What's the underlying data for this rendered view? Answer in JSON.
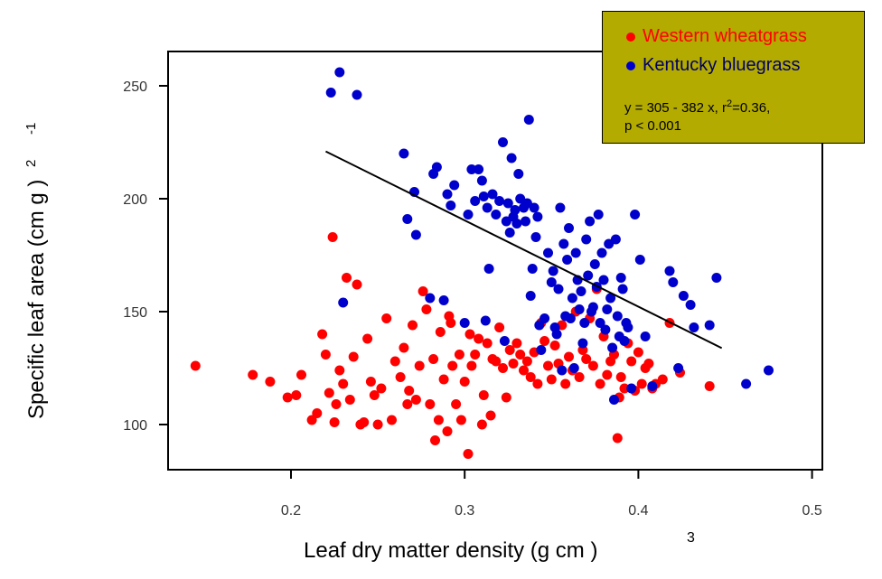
{
  "chart_data": {
    "type": "scatter",
    "xlabel": "Leaf dry matter density (g cm  )",
    "xlabel_sup": "3",
    "ylabel": "Specific leaf area (cm g )",
    "ylabel_sup1": "2",
    "ylabel_sup2": "-1",
    "xlim": [
      0.13,
      0.505
    ],
    "ylim": [
      80,
      265
    ],
    "xticks": [
      0.2,
      0.3,
      0.4,
      0.5
    ],
    "xtick_labels": [
      "0.2",
      "0.3",
      "0.4",
      "0.5"
    ],
    "yticks": [
      100,
      150,
      200,
      250
    ],
    "ytick_labels": [
      "100",
      "150",
      "200",
      "250"
    ],
    "grid": false,
    "legend_position": "top-right",
    "series": [
      {
        "name": "Western wheatgrass",
        "color": "#ff0000",
        "points": [
          [
            0.145,
            126
          ],
          [
            0.178,
            122
          ],
          [
            0.188,
            119
          ],
          [
            0.198,
            112
          ],
          [
            0.203,
            113
          ],
          [
            0.206,
            122
          ],
          [
            0.212,
            102
          ],
          [
            0.215,
            105
          ],
          [
            0.218,
            140
          ],
          [
            0.22,
            131
          ],
          [
            0.222,
            114
          ],
          [
            0.224,
            183
          ],
          [
            0.225,
            101
          ],
          [
            0.226,
            109
          ],
          [
            0.228,
            124
          ],
          [
            0.23,
            118
          ],
          [
            0.232,
            165
          ],
          [
            0.234,
            111
          ],
          [
            0.236,
            130
          ],
          [
            0.238,
            162
          ],
          [
            0.24,
            100
          ],
          [
            0.242,
            101
          ],
          [
            0.244,
            138
          ],
          [
            0.246,
            119
          ],
          [
            0.248,
            113
          ],
          [
            0.25,
            100
          ],
          [
            0.252,
            116
          ],
          [
            0.255,
            147
          ],
          [
            0.258,
            102
          ],
          [
            0.26,
            128
          ],
          [
            0.263,
            121
          ],
          [
            0.265,
            134
          ],
          [
            0.267,
            109
          ],
          [
            0.268,
            115
          ],
          [
            0.27,
            144
          ],
          [
            0.272,
            111
          ],
          [
            0.274,
            126
          ],
          [
            0.276,
            159
          ],
          [
            0.278,
            151
          ],
          [
            0.28,
            109
          ],
          [
            0.282,
            129
          ],
          [
            0.283,
            93
          ],
          [
            0.285,
            102
          ],
          [
            0.286,
            141
          ],
          [
            0.288,
            120
          ],
          [
            0.29,
            97
          ],
          [
            0.291,
            148
          ],
          [
            0.292,
            145
          ],
          [
            0.293,
            126
          ],
          [
            0.295,
            109
          ],
          [
            0.297,
            131
          ],
          [
            0.298,
            102
          ],
          [
            0.3,
            119
          ],
          [
            0.302,
            87
          ],
          [
            0.303,
            140
          ],
          [
            0.304,
            126
          ],
          [
            0.306,
            131
          ],
          [
            0.308,
            138
          ],
          [
            0.31,
            100
          ],
          [
            0.311,
            113
          ],
          [
            0.313,
            136
          ],
          [
            0.315,
            104
          ],
          [
            0.316,
            129
          ],
          [
            0.318,
            128
          ],
          [
            0.32,
            143
          ],
          [
            0.322,
            125
          ],
          [
            0.324,
            112
          ],
          [
            0.326,
            133
          ],
          [
            0.328,
            127
          ],
          [
            0.33,
            136
          ],
          [
            0.332,
            131
          ],
          [
            0.334,
            124
          ],
          [
            0.336,
            128
          ],
          [
            0.338,
            121
          ],
          [
            0.34,
            132
          ],
          [
            0.342,
            118
          ],
          [
            0.344,
            145
          ],
          [
            0.346,
            137
          ],
          [
            0.348,
            126
          ],
          [
            0.35,
            120
          ],
          [
            0.352,
            135
          ],
          [
            0.354,
            127
          ],
          [
            0.356,
            144
          ],
          [
            0.358,
            118
          ],
          [
            0.36,
            130
          ],
          [
            0.362,
            124
          ],
          [
            0.364,
            150
          ],
          [
            0.366,
            121
          ],
          [
            0.368,
            133
          ],
          [
            0.37,
            129
          ],
          [
            0.372,
            147
          ],
          [
            0.374,
            126
          ],
          [
            0.376,
            160
          ],
          [
            0.378,
            118
          ],
          [
            0.38,
            139
          ],
          [
            0.382,
            122
          ],
          [
            0.384,
            128
          ],
          [
            0.386,
            131
          ],
          [
            0.388,
            94
          ],
          [
            0.389,
            112
          ],
          [
            0.39,
            121
          ],
          [
            0.392,
            116
          ],
          [
            0.394,
            136
          ],
          [
            0.396,
            128
          ],
          [
            0.398,
            115
          ],
          [
            0.4,
            132
          ],
          [
            0.402,
            118
          ],
          [
            0.404,
            125
          ],
          [
            0.406,
            127
          ],
          [
            0.408,
            116
          ],
          [
            0.41,
            118
          ],
          [
            0.414,
            120
          ],
          [
            0.418,
            145
          ],
          [
            0.424,
            123
          ],
          [
            0.441,
            117
          ]
        ]
      },
      {
        "name": "Kentucky bluegrass",
        "color": "#0000cc",
        "points": [
          [
            0.223,
            247
          ],
          [
            0.228,
            256
          ],
          [
            0.23,
            154
          ],
          [
            0.238,
            246
          ],
          [
            0.265,
            220
          ],
          [
            0.267,
            191
          ],
          [
            0.271,
            203
          ],
          [
            0.272,
            184
          ],
          [
            0.28,
            156
          ],
          [
            0.282,
            211
          ],
          [
            0.284,
            214
          ],
          [
            0.288,
            155
          ],
          [
            0.29,
            202
          ],
          [
            0.292,
            197
          ],
          [
            0.294,
            206
          ],
          [
            0.3,
            145
          ],
          [
            0.302,
            193
          ],
          [
            0.304,
            213
          ],
          [
            0.306,
            199
          ],
          [
            0.308,
            213
          ],
          [
            0.31,
            208
          ],
          [
            0.311,
            201
          ],
          [
            0.312,
            146
          ],
          [
            0.313,
            196
          ],
          [
            0.314,
            169
          ],
          [
            0.316,
            202
          ],
          [
            0.318,
            193
          ],
          [
            0.32,
            199
          ],
          [
            0.322,
            225
          ],
          [
            0.323,
            137
          ],
          [
            0.324,
            190
          ],
          [
            0.325,
            198
          ],
          [
            0.326,
            185
          ],
          [
            0.327,
            218
          ],
          [
            0.328,
            192
          ],
          [
            0.329,
            195
          ],
          [
            0.33,
            189
          ],
          [
            0.331,
            211
          ],
          [
            0.332,
            200
          ],
          [
            0.334,
            196
          ],
          [
            0.335,
            190
          ],
          [
            0.336,
            198
          ],
          [
            0.337,
            235
          ],
          [
            0.338,
            157
          ],
          [
            0.339,
            169
          ],
          [
            0.34,
            196
          ],
          [
            0.341,
            183
          ],
          [
            0.342,
            192
          ],
          [
            0.343,
            144
          ],
          [
            0.344,
            133
          ],
          [
            0.346,
            147
          ],
          [
            0.348,
            176
          ],
          [
            0.35,
            163
          ],
          [
            0.351,
            168
          ],
          [
            0.352,
            143
          ],
          [
            0.353,
            140
          ],
          [
            0.354,
            160
          ],
          [
            0.355,
            196
          ],
          [
            0.356,
            124
          ],
          [
            0.357,
            180
          ],
          [
            0.358,
            148
          ],
          [
            0.359,
            173
          ],
          [
            0.36,
            187
          ],
          [
            0.361,
            147
          ],
          [
            0.362,
            156
          ],
          [
            0.363,
            125
          ],
          [
            0.364,
            176
          ],
          [
            0.365,
            164
          ],
          [
            0.366,
            151
          ],
          [
            0.367,
            159
          ],
          [
            0.368,
            136
          ],
          [
            0.369,
            145
          ],
          [
            0.37,
            182
          ],
          [
            0.371,
            166
          ],
          [
            0.372,
            190
          ],
          [
            0.373,
            150
          ],
          [
            0.374,
            152
          ],
          [
            0.375,
            171
          ],
          [
            0.376,
            161
          ],
          [
            0.377,
            193
          ],
          [
            0.378,
            145
          ],
          [
            0.379,
            176
          ],
          [
            0.38,
            164
          ],
          [
            0.381,
            142
          ],
          [
            0.382,
            151
          ],
          [
            0.383,
            180
          ],
          [
            0.384,
            156
          ],
          [
            0.385,
            134
          ],
          [
            0.386,
            111
          ],
          [
            0.387,
            182
          ],
          [
            0.388,
            148
          ],
          [
            0.389,
            139
          ],
          [
            0.39,
            165
          ],
          [
            0.391,
            160
          ],
          [
            0.392,
            137
          ],
          [
            0.393,
            145
          ],
          [
            0.394,
            143
          ],
          [
            0.396,
            116
          ],
          [
            0.398,
            193
          ],
          [
            0.401,
            173
          ],
          [
            0.404,
            139
          ],
          [
            0.408,
            117
          ],
          [
            0.418,
            168
          ],
          [
            0.42,
            163
          ],
          [
            0.423,
            125
          ],
          [
            0.426,
            157
          ],
          [
            0.43,
            153
          ],
          [
            0.432,
            143
          ],
          [
            0.441,
            144
          ],
          [
            0.445,
            165
          ],
          [
            0.462,
            118
          ],
          [
            0.475,
            124
          ]
        ]
      }
    ],
    "regression_line": {
      "x": [
        0.22,
        0.448
      ],
      "y": [
        220.96,
        133.86
      ]
    },
    "annotation": [
      "y = 305 - 382 x, r  =0.36,",
      "p < 0.001"
    ],
    "annotation_sup": "2"
  },
  "legend": {
    "western_label": "Western wheatgrass",
    "bluegrass_label": "Kentucky bluegrass",
    "eq_line1": "y = 305 - 382 x, r",
    "eq_sup": "2",
    "eq_line1_rest": "=0.36,",
    "eq_line2": "p < 0.001",
    "colors": {
      "western": "#ff0000",
      "bluegrass": "#0000cc",
      "box": "#b3ab00"
    }
  }
}
